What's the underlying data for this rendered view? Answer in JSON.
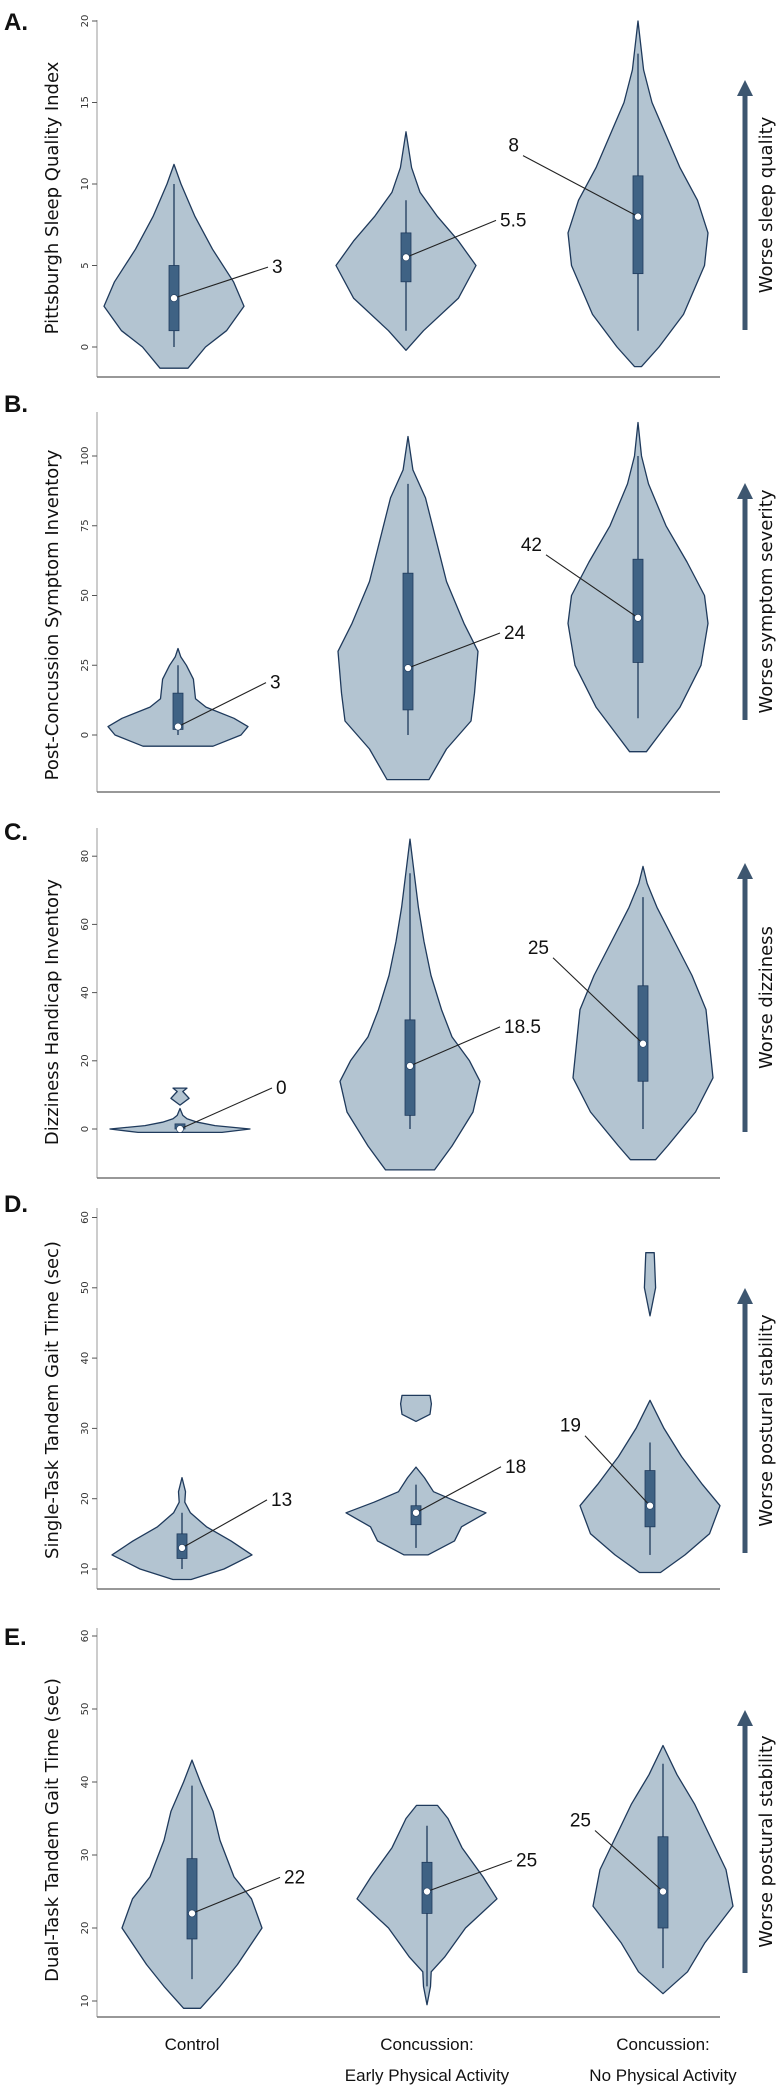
{
  "colors": {
    "violin_fill": "#b3c4d1",
    "violin_stroke": "#1f3a5c",
    "box": "#3f6284",
    "arrow": "#3d5670",
    "median_dot": "#ffffff"
  },
  "chart_data": {
    "type": "violin",
    "categories": [
      "Control",
      "Concussion:\nEarly Physical Activity",
      "Concussion:\nNo Physical Activity"
    ],
    "category_lines": [
      [
        "Control"
      ],
      [
        "Concussion:",
        "Early Physical Activity"
      ],
      [
        "Concussion:",
        "No Physical Activity"
      ]
    ],
    "panels": [
      {
        "letter": "A.",
        "ylabel": "Pittsburgh Sleep Quality Index",
        "arrow_label": "Worse sleep quality",
        "ylim": [
          -1.5,
          20.5
        ],
        "ticks": [
          0,
          5,
          10,
          15,
          20
        ],
        "violins": [
          {
            "median": 3,
            "median_label": "3",
            "q1": 1,
            "q3": 5,
            "whisker": [
              0,
              10
            ],
            "density": [
              [
                [
                  -1.3,
                  0.2
                ],
                [
                  0,
                  0.45
                ],
                [
                  1,
                  0.75
                ],
                [
                  2.5,
                  1
                ],
                [
                  4,
                  0.85
                ],
                [
                  6,
                  0.55
                ],
                [
                  8,
                  0.3
                ],
                [
                  10,
                  0.1
                ],
                [
                  11.2,
                  0
                ]
              ]
            ]
          },
          {
            "median": 5.5,
            "median_label": "5.5",
            "q1": 4,
            "q3": 7,
            "whisker": [
              1,
              9
            ],
            "density": [
              [
                [
                  -0.2,
                  0
                ],
                [
                  1,
                  0.25
                ],
                [
                  3,
                  0.75
                ],
                [
                  5,
                  1
                ],
                [
                  6.5,
                  0.75
                ],
                [
                  8,
                  0.45
                ],
                [
                  9.5,
                  0.2
                ],
                [
                  11,
                  0.08
                ],
                [
                  13.2,
                  0
                ]
              ]
            ]
          },
          {
            "median": 8,
            "median_label": "8",
            "q1": 4.5,
            "q3": 10.5,
            "whisker": [
              1,
              18
            ],
            "density": [
              [
                [
                  -1.2,
                  0.05
                ],
                [
                  0,
                  0.3
                ],
                [
                  2,
                  0.65
                ],
                [
                  5,
                  0.95
                ],
                [
                  7,
                  1
                ],
                [
                  9,
                  0.85
                ],
                [
                  11,
                  0.6
                ],
                [
                  13,
                  0.4
                ],
                [
                  15,
                  0.2
                ],
                [
                  17,
                  0.08
                ],
                [
                  20,
                  0
                ]
              ]
            ]
          }
        ]
      },
      {
        "letter": "B.",
        "ylabel": "Post-Concussion Symptom Inventory",
        "arrow_label": "Worse symptom severity",
        "ylim": [
          -20,
          115
        ],
        "ticks": [
          0,
          25,
          50,
          75,
          100
        ],
        "violins": [
          {
            "median": 3,
            "median_label": "3",
            "q1": 2,
            "q3": 15,
            "whisker": [
              0,
              25
            ],
            "density": [
              [
                [
                  -4,
                  0.5
                ],
                [
                  0,
                  0.9
                ],
                [
                  3,
                  1
                ],
                [
                  6,
                  0.8
                ],
                [
                  10,
                  0.4
                ],
                [
                  13,
                  0.25
                ],
                [
                  20,
                  0.22
                ],
                [
                  25,
                  0.12
                ],
                [
                  28,
                  0.04
                ],
                [
                  31,
                  0
                ]
              ]
            ]
          },
          {
            "median": 24,
            "median_label": "24",
            "q1": 9,
            "q3": 58,
            "whisker": [
              0,
              90
            ],
            "density": [
              [
                [
                  -16,
                  0.3
                ],
                [
                  -5,
                  0.55
                ],
                [
                  5,
                  0.9
                ],
                [
                  15,
                  0.95
                ],
                [
                  30,
                  1
                ],
                [
                  40,
                  0.8
                ],
                [
                  55,
                  0.55
                ],
                [
                  70,
                  0.4
                ],
                [
                  85,
                  0.25
                ],
                [
                  95,
                  0.07
                ],
                [
                  107,
                  0
                ]
              ]
            ]
          },
          {
            "median": 42,
            "median_label": "42",
            "q1": 26,
            "q3": 63,
            "whisker": [
              6,
              100
            ],
            "density": [
              [
                [
                  -6,
                  0.12
                ],
                [
                  0,
                  0.3
                ],
                [
                  10,
                  0.6
                ],
                [
                  25,
                  0.9
                ],
                [
                  40,
                  1
                ],
                [
                  50,
                  0.95
                ],
                [
                  62,
                  0.7
                ],
                [
                  75,
                  0.4
                ],
                [
                  90,
                  0.15
                ],
                [
                  100,
                  0.05
                ],
                [
                  112,
                  0
                ]
              ]
            ]
          }
        ]
      },
      {
        "letter": "C.",
        "ylabel": "Dizziness Handicap Inventory",
        "arrow_label": "Worse dizziness",
        "ylim": [
          -14,
          88
        ],
        "ticks": [
          0,
          20,
          40,
          60,
          80
        ],
        "violins": [
          {
            "median": 0,
            "median_label": "0",
            "q1": 0,
            "q3": 1.5,
            "whisker": [
              0,
              1.5
            ],
            "density": [
              [
                [
                  -1,
                  0.6
                ],
                [
                  0,
                  1
                ],
                [
                  1,
                  0.5
                ],
                [
                  2,
                  0.25
                ],
                [
                  3,
                  0.1
                ],
                [
                  4,
                  0.04
                ],
                [
                  5,
                  0.02
                ],
                [
                  6,
                  0
                ]
              ],
              [
                [
                  7,
                  0
                ],
                [
                  9,
                  0.13
                ],
                [
                  11,
                  0.04
                ],
                [
                  12,
                  0.1
                ]
              ]
            ]
          },
          {
            "median": 18.5,
            "median_label": "18.5",
            "q1": 4,
            "q3": 32,
            "whisker": [
              0,
              75
            ],
            "density": [
              [
                [
                  -12,
                  0.35
                ],
                [
                  -5,
                  0.6
                ],
                [
                  5,
                  0.9
                ],
                [
                  14,
                  1
                ],
                [
                  20,
                  0.85
                ],
                [
                  27,
                  0.6
                ],
                [
                  35,
                  0.45
                ],
                [
                  45,
                  0.3
                ],
                [
                  55,
                  0.2
                ],
                [
                  65,
                  0.12
                ],
                [
                  75,
                  0.06
                ],
                [
                  85,
                  0
                ]
              ]
            ]
          },
          {
            "median": 25,
            "median_label": "25",
            "q1": 14,
            "q3": 42,
            "whisker": [
              0,
              68
            ],
            "density": [
              [
                [
                  -9,
                  0.18
                ],
                [
                  -5,
                  0.35
                ],
                [
                  5,
                  0.75
                ],
                [
                  15,
                  1
                ],
                [
                  25,
                  0.95
                ],
                [
                  35,
                  0.9
                ],
                [
                  45,
                  0.7
                ],
                [
                  55,
                  0.45
                ],
                [
                  65,
                  0.2
                ],
                [
                  72,
                  0.06
                ],
                [
                  77,
                  0
                ]
              ]
            ]
          }
        ]
      },
      {
        "letter": "D.",
        "ylabel": "Single-Task Tandem Gait Time (sec)",
        "arrow_label": "Worse postural stability",
        "ylim": [
          7,
          62
        ],
        "ticks": [
          10,
          20,
          30,
          40,
          50,
          60
        ],
        "violins": [
          {
            "median": 13,
            "median_label": "13",
            "q1": 11.5,
            "q3": 15,
            "whisker": [
              10,
              18
            ],
            "density": [
              [
                [
                  8.5,
                  0.13
                ],
                [
                  10,
                  0.6
                ],
                [
                  12,
                  1
                ],
                [
                  14,
                  0.7
                ],
                [
                  16,
                  0.35
                ],
                [
                  18,
                  0.12
                ],
                [
                  19.5,
                  0.04
                ],
                [
                  21,
                  0.05
                ],
                [
                  23,
                  0
                ]
              ]
            ]
          },
          {
            "median": 18,
            "median_label": "18",
            "q1": 16.3,
            "q3": 19,
            "whisker": [
              13,
              22
            ],
            "density": [
              [
                [
                  12,
                  0.17
                ],
                [
                  14,
                  0.55
                ],
                [
                  16,
                  0.65
                ],
                [
                  18,
                  1
                ],
                [
                  19.5,
                  0.6
                ],
                [
                  21,
                  0.25
                ],
                [
                  23,
                  0.12
                ],
                [
                  24.5,
                  0
                ]
              ],
              [
                [
                  31,
                  0
                ],
                [
                  32,
                  0.2
                ],
                [
                  33.5,
                  0.22
                ],
                [
                  34.7,
                  0.2
                ]
              ]
            ]
          },
          {
            "median": 19,
            "median_label": "19",
            "q1": 16,
            "q3": 24,
            "whisker": [
              12,
              28
            ],
            "density": [
              [
                [
                  9.5,
                  0.15
                ],
                [
                  12,
                  0.5
                ],
                [
                  15,
                  0.85
                ],
                [
                  19,
                  1
                ],
                [
                  22,
                  0.75
                ],
                [
                  26,
                  0.45
                ],
                [
                  30,
                  0.2
                ],
                [
                  34,
                  0
                ]
              ],
              [
                [
                  46,
                  0
                ],
                [
                  50,
                  0.08
                ],
                [
                  55,
                  0.06
                ]
              ]
            ]
          }
        ]
      },
      {
        "letter": "E.",
        "ylabel": "Dual-Task Tandem Gait Time (sec)",
        "arrow_label": "Worse postural stability",
        "ylim": [
          7,
          62
        ],
        "ticks": [
          10,
          20,
          30,
          40,
          50,
          60
        ],
        "violins": [
          {
            "median": 22,
            "median_label": "22",
            "q1": 18.5,
            "q3": 29.5,
            "whisker": [
              13,
              39.5
            ],
            "density": [
              [
                [
                  9,
                  0.12
                ],
                [
                  12,
                  0.4
                ],
                [
                  15,
                  0.65
                ],
                [
                  20,
                  1
                ],
                [
                  24,
                  0.85
                ],
                [
                  27,
                  0.6
                ],
                [
                  32,
                  0.4
                ],
                [
                  36,
                  0.3
                ],
                [
                  40,
                  0.12
                ],
                [
                  43,
                  0
                ]
              ]
            ]
          },
          {
            "median": 25,
            "median_label": "25",
            "q1": 22,
            "q3": 29,
            "whisker": [
              12,
              34
            ],
            "density": [
              [
                [
                  9.5,
                  0
                ],
                [
                  12,
                  0.05
                ],
                [
                  14,
                  0.06
                ],
                [
                  16,
                  0.25
                ],
                [
                  20,
                  0.55
                ],
                [
                  24,
                  1
                ],
                [
                  27,
                  0.8
                ],
                [
                  31,
                  0.5
                ],
                [
                  35,
                  0.3
                ],
                [
                  36.8,
                  0.15
                ]
              ]
            ]
          },
          {
            "median": 25,
            "median_label": "25",
            "q1": 20,
            "q3": 32.5,
            "whisker": [
              14.5,
              42.5
            ],
            "density": [
              [
                [
                  11,
                  0
                ],
                [
                  14,
                  0.35
                ],
                [
                  18,
                  0.6
                ],
                [
                  23,
                  1
                ],
                [
                  28,
                  0.9
                ],
                [
                  33,
                  0.65
                ],
                [
                  37,
                  0.45
                ],
                [
                  41,
                  0.2
                ],
                [
                  45,
                  0
                ]
              ]
            ]
          }
        ]
      }
    ]
  }
}
